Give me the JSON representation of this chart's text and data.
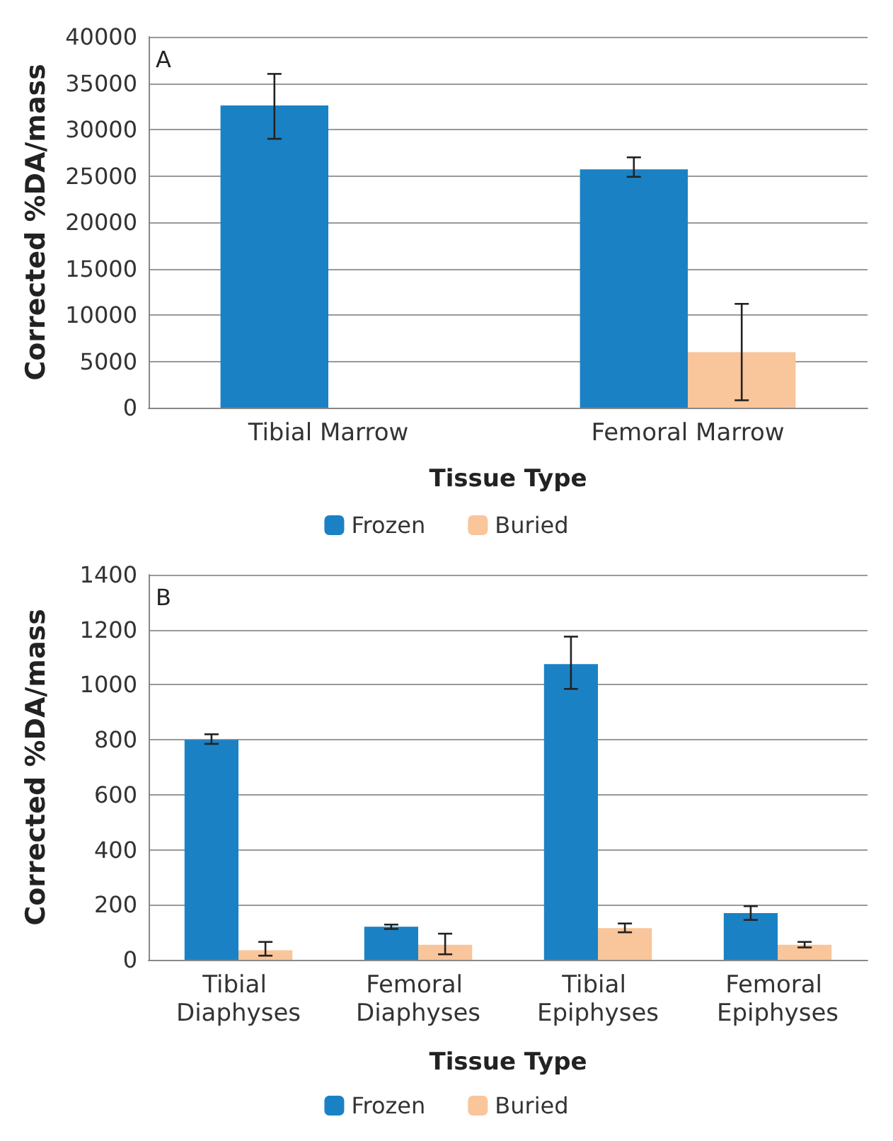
{
  "chart_data": [
    {
      "type": "bar",
      "xlabel": "Tissue Type",
      "ylabel": "Corrected %DA/mass",
      "annotations": [
        "A"
      ],
      "categories": [
        "Tibial Marrow",
        "Femoral Marrow"
      ],
      "series": [
        {
          "name": "Frozen",
          "color": "#1a82c4",
          "values": [
            32600,
            25700
          ],
          "errors": [
            [
              29000,
              36000
            ],
            [
              24900,
              27000
            ]
          ]
        },
        {
          "name": "Buried",
          "color": "#f9c59a",
          "values": [
            0,
            6000
          ],
          "errors": [
            null,
            [
              800,
              11200
            ]
          ]
        }
      ],
      "ylim": [
        0,
        40000
      ],
      "yticks": [
        0,
        5000,
        10000,
        15000,
        20000,
        25000,
        30000,
        35000,
        40000
      ],
      "grid": "y",
      "legend": "bottom"
    },
    {
      "type": "bar",
      "xlabel": "Tissue Type",
      "ylabel": "Corrected %DA/mass",
      "annotations": [
        "B"
      ],
      "categories": [
        "Tibial Diaphyses",
        "Femoral Diaphyses",
        "Tibial Epiphyses",
        "Femoral Epiphyses"
      ],
      "series": [
        {
          "name": "Frozen",
          "color": "#1a82c4",
          "values": [
            800,
            120,
            1075,
            170
          ],
          "errors": [
            [
              785,
              820
            ],
            [
              112,
              128
            ],
            [
              985,
              1175
            ],
            [
              145,
              195
            ]
          ]
        },
        {
          "name": "Buried",
          "color": "#f9c59a",
          "values": [
            35,
            55,
            115,
            55
          ],
          "errors": [
            [
              15,
              65
            ],
            [
              20,
              95
            ],
            [
              100,
              132
            ],
            [
              45,
              65
            ]
          ]
        }
      ],
      "ylim": [
        0,
        1400
      ],
      "yticks": [
        0,
        200,
        400,
        600,
        800,
        1000,
        1200,
        1400
      ],
      "grid": "y",
      "legend": "bottom"
    }
  ]
}
